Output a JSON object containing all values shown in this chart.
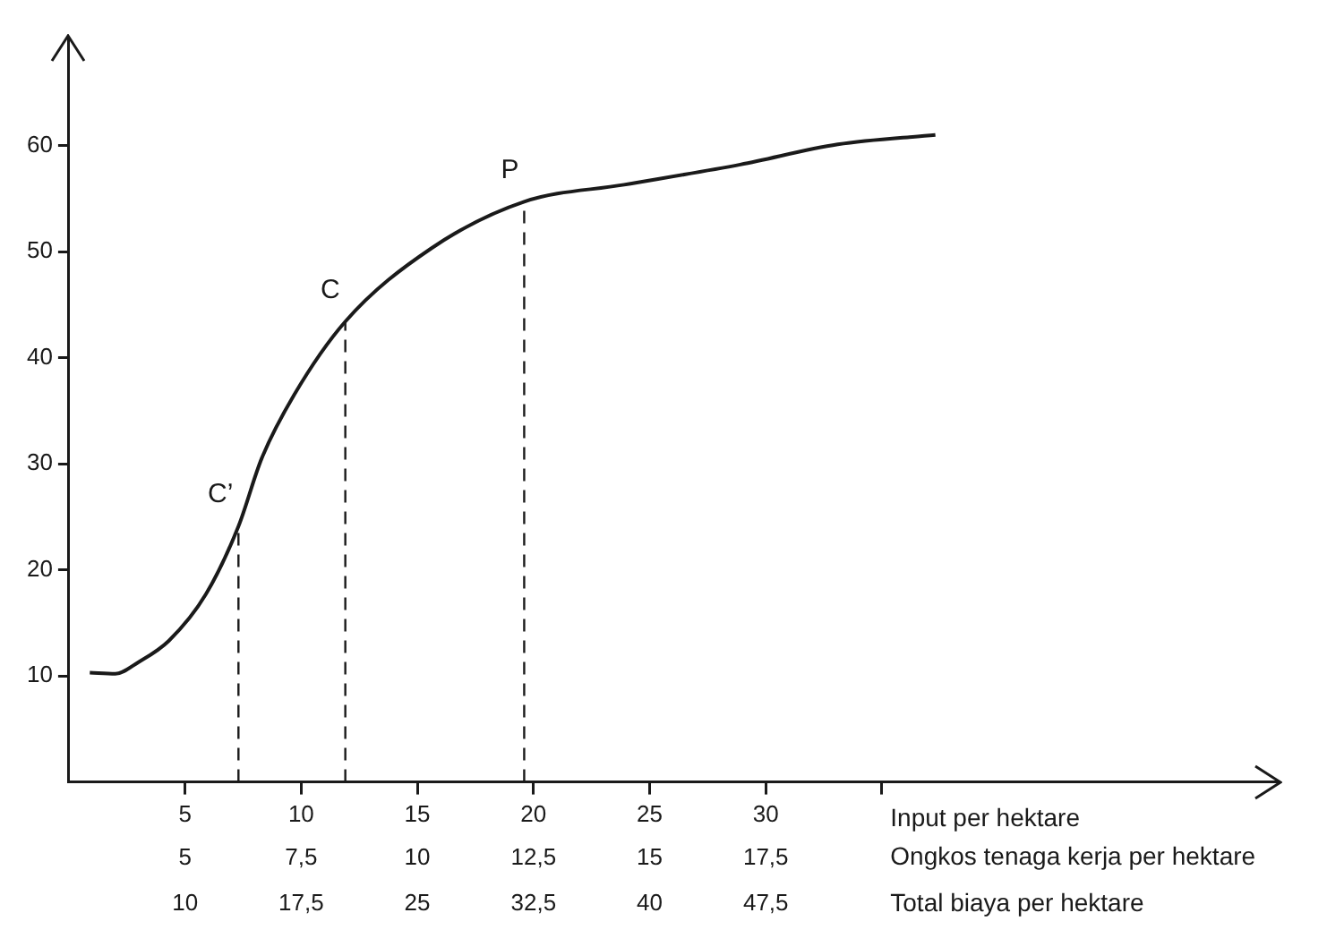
{
  "chart_data": {
    "type": "line",
    "xlabel": "Input per hektare",
    "x2label": "Ongkos tenaga kerja per hektare",
    "xlim": [
      0,
      52
    ],
    "xticks": [
      5,
      10,
      15,
      20,
      25,
      30,
      {
        "value": 35,
        "label": null
      }
    ],
    "x2lim": [
      2.5,
      28.5
    ],
    "x2ticks": [
      5,
      {
        "value": 7.5,
        "label": "7,5"
      },
      10,
      {
        "value": 12.5,
        "label": "12,5"
      },
      15,
      {
        "value": 17.5,
        "label": "17,5"
      }
    ],
    "annotations": [
      "10",
      "17,5",
      "25",
      "32,5",
      "40",
      "47,5",
      "Total biaya per hektare"
    ],
    "ylim": [
      0,
      70
    ],
    "yticks": [
      10,
      20,
      30,
      40,
      50,
      60
    ],
    "series": [
      {
        "color": "#1a1a1a",
        "x": [
          0.9,
          2,
          3,
          4.3,
          5.9,
          7.3,
          8.3,
          9.7,
          11.9,
          15.6,
          19.6,
          23.9,
          28.9,
          33.1,
          37.3
        ],
        "values": [
          10.3,
          10.2,
          11.3,
          13.3,
          17.7,
          24.1,
          30.5,
          36.5,
          43.4,
          50.3,
          54.7,
          56.3,
          58.2,
          60.1,
          61.0
        ]
      }
    ],
    "ref_lines": [
      {
        "axis": "x",
        "value": 7.3,
        "label": "C’",
        "line_style": "dashed"
      },
      {
        "axis": "x",
        "value": 11.9,
        "label": "C",
        "line_style": "dashed"
      },
      {
        "axis": "x",
        "value": 19.6,
        "label": "P",
        "line_style": "dashed"
      }
    ],
    "marker": "none",
    "line_style": "solid",
    "grid": false,
    "legend": false
  }
}
